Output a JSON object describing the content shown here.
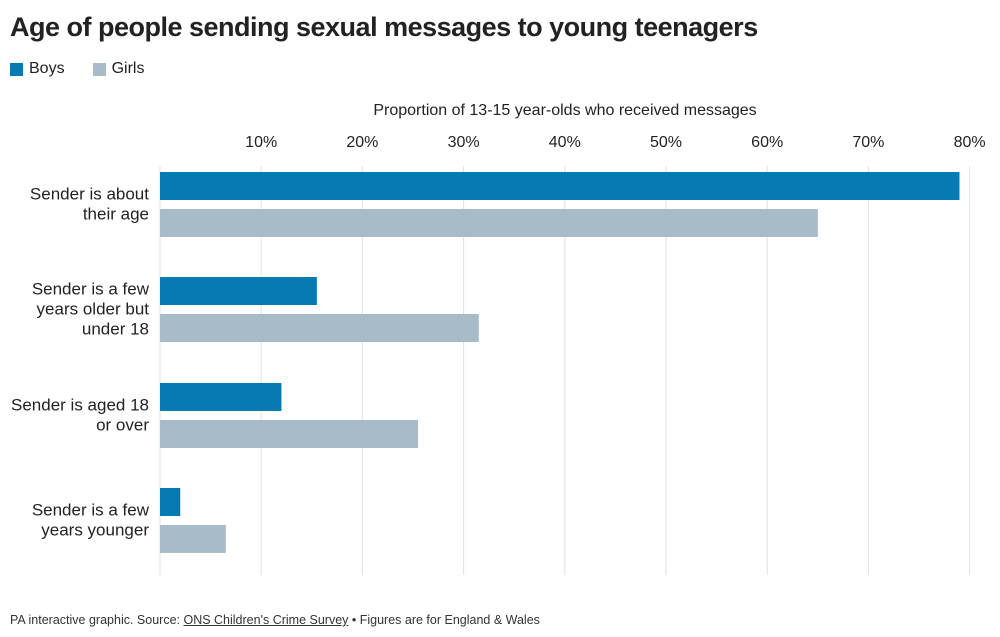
{
  "chart_data": {
    "type": "bar",
    "orientation": "horizontal",
    "title": "Age of people sending sexual messages to young teenagers",
    "xlabel": "Proportion of 13-15 year-olds who received messages",
    "ticks": [
      "10%",
      "20%",
      "30%",
      "40%",
      "50%",
      "60%",
      "70%",
      "80%"
    ],
    "tick_values": [
      10,
      20,
      30,
      40,
      50,
      60,
      70,
      80
    ],
    "xlim": [
      0,
      80
    ],
    "grid": true,
    "legend_position": "top-left",
    "categories": [
      [
        "Sender is about",
        "their age"
      ],
      [
        "Sender is a few",
        "years older but",
        "under 18"
      ],
      [
        "Sender is aged 18",
        "or over"
      ],
      [
        "Sender is a few",
        "years younger"
      ]
    ],
    "series": [
      {
        "name": "Boys",
        "color": "#0779b3",
        "values": [
          79,
          15.5,
          12,
          2
        ]
      },
      {
        "name": "Girls",
        "color": "#a7bcc8",
        "values": [
          65,
          31.5,
          25.5,
          6.5
        ]
      }
    ]
  },
  "footer": {
    "prefix": "PA interactive graphic. Source: ",
    "link": "ONS Children's Crime Survey",
    "suffix": " • Figures are for England & Wales"
  }
}
